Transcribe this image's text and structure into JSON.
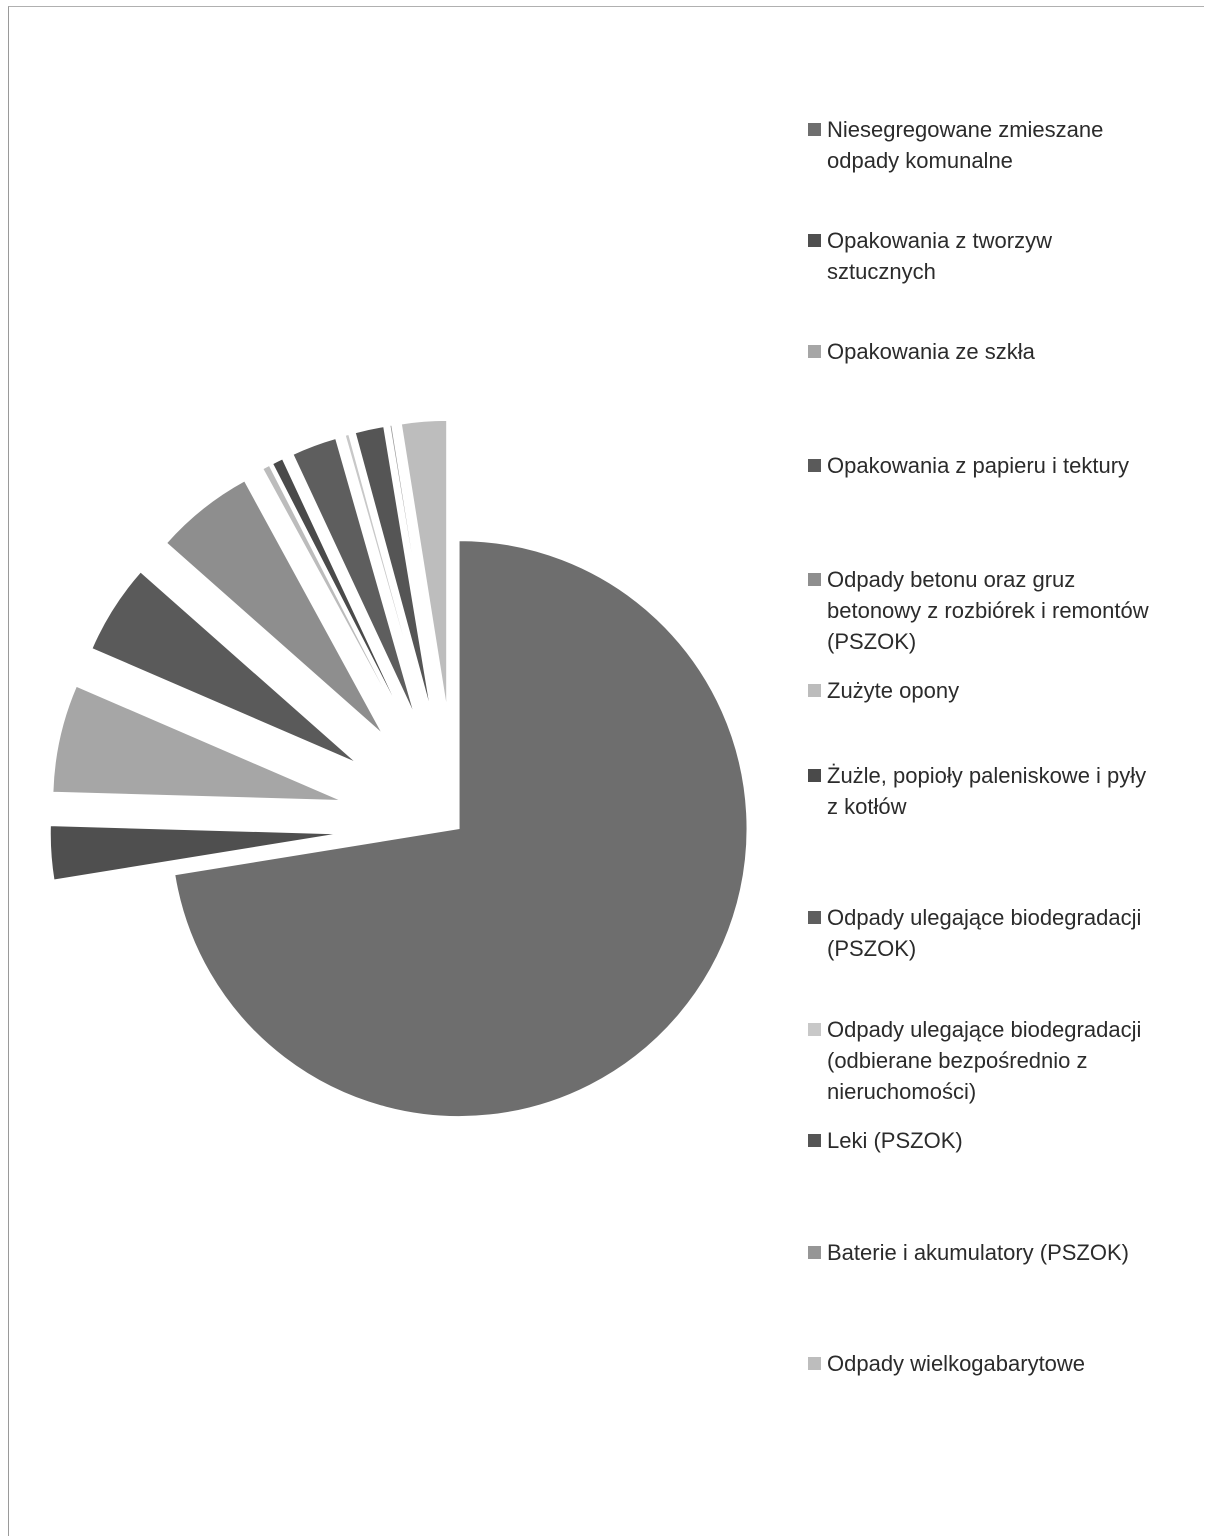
{
  "chart_data": {
    "type": "pie",
    "title": "",
    "legend_position": "right",
    "categories": [
      "Niesegregowane zmieszane\nodpady komunalne",
      "Opakowania z tworzyw\nsztucznych",
      "Opakowania ze szkła",
      "Opakowania z papieru i tektury",
      "Odpady betonu oraz gruz\nbetonowy z rozbiórek i remontów\n(PSZOK)",
      "Zużyte opony",
      "Żużle, popioły paleniskowe i pyły\nz kotłów",
      "Odpady ulegające biodegradacji\n(PSZOK)",
      "Odpady ulegające biodegradacji\n(odbierane bezpośrednio z\nnieruchomości)",
      "Leki (PSZOK)",
      "Baterie i akumulatory (PSZOK)",
      "Odpady wielkogabarytowe"
    ],
    "values": [
      72.0,
      3.0,
      6.0,
      5.0,
      5.5,
      0.4,
      0.6,
      2.5,
      0.2,
      1.6,
      0.1,
      2.5
    ],
    "exploded": true,
    "colors": [
      "#6e6e6e",
      "#4f4f4f",
      "#a6a6a6",
      "#5a5a5a",
      "#8e8e8e",
      "#bcbcbc",
      "#4a4a4a",
      "#5e5e5e",
      "#c8c8c8",
      "#555555",
      "#969696",
      "#bdbdbd"
    ]
  }
}
